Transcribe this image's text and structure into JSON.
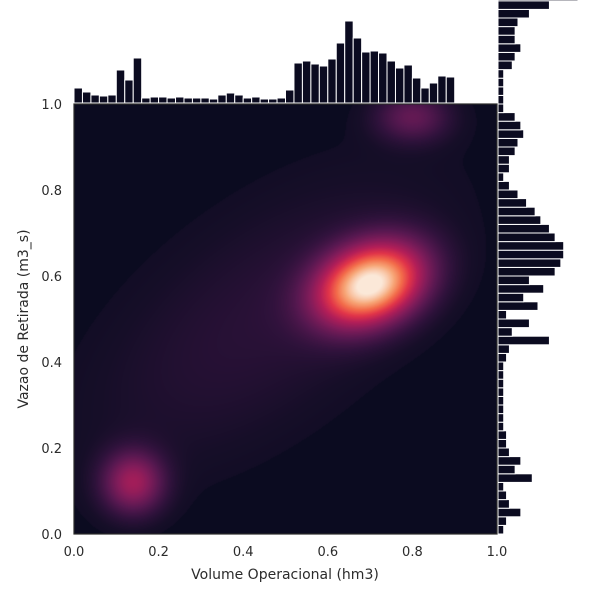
{
  "chart_data": {
    "type": "heatmap",
    "subtype": "kde-joint-plot-with-marginal-histograms",
    "title": "",
    "xlabel": "Volume Operacional (hm3)",
    "ylabel": "Vazao de Retirada (m3_s)",
    "xlim": [
      0.0,
      1.0
    ],
    "ylim": [
      0.0,
      1.0
    ],
    "x_ticks": [
      "0.0",
      "0.2",
      "0.4",
      "0.6",
      "0.8",
      "1.0"
    ],
    "y_ticks": [
      "0.0",
      "0.2",
      "0.4",
      "0.6",
      "0.8",
      "1.0"
    ],
    "grid": false,
    "colormap": "rocket",
    "colors": {
      "background": "#0b0b20",
      "bar": "#0b0b20",
      "bar_edge": "#ffffff",
      "peak": "#fbe8d8"
    },
    "density_components": [
      {
        "mx": 0.7,
        "my": 0.58,
        "sx": 0.085,
        "sy": 0.065,
        "rho": 0.25,
        "w": 1.0
      },
      {
        "mx": 0.14,
        "my": 0.12,
        "sx": 0.05,
        "sy": 0.05,
        "rho": 0.0,
        "w": 0.38
      },
      {
        "mx": 0.8,
        "my": 0.97,
        "sx": 0.06,
        "sy": 0.04,
        "rho": 0.0,
        "w": 0.22
      },
      {
        "mx": 0.45,
        "my": 0.5,
        "sx": 0.3,
        "sy": 0.25,
        "rho": 0.6,
        "w": 0.08
      }
    ],
    "x_marginal": {
      "bin_width": 0.02,
      "counts": [
        15,
        11,
        8,
        7,
        8,
        33,
        23,
        45,
        5,
        6,
        6,
        5,
        6,
        5,
        5,
        5,
        4,
        8,
        10,
        8,
        5,
        6,
        4,
        4,
        5,
        13,
        40,
        42,
        39,
        37,
        44,
        60,
        82,
        65,
        51,
        52,
        50,
        42,
        35,
        38,
        25,
        15,
        20,
        27,
        26
      ]
    },
    "y_marginal": {
      "bin_width": 0.02,
      "counts": [
        2,
        3,
        8,
        4,
        3,
        2,
        12,
        6,
        8,
        4,
        3,
        3,
        2,
        2,
        2,
        2,
        2,
        2,
        2,
        2,
        3,
        4,
        18,
        5,
        11,
        3,
        14,
        9,
        16,
        11,
        20,
        22,
        23,
        23,
        20,
        18,
        15,
        13,
        10,
        7,
        4,
        2,
        4,
        4,
        6,
        7,
        9,
        8,
        6,
        2,
        2,
        2,
        2,
        2,
        5,
        6,
        8,
        6,
        6,
        7,
        11,
        18,
        28
      ]
    }
  }
}
